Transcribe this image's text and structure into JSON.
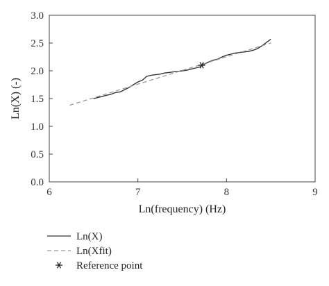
{
  "chart_data": {
    "type": "line",
    "xlabel": "Ln(frequency) (Hz)",
    "ylabel": "Ln(X) (-)",
    "xlim": [
      6,
      9
    ],
    "ylim": [
      0,
      3
    ],
    "x_ticks": [
      "6",
      "7",
      "8",
      "9"
    ],
    "y_ticks": [
      "0.0",
      "0.5",
      "1.0",
      "1.5",
      "2.0",
      "2.5",
      "3.0"
    ],
    "grid": false,
    "legend_position": "below",
    "series": [
      {
        "name": "Ln(X)",
        "style": "solid",
        "color": "#333333",
        "points": [
          [
            6.5,
            1.5
          ],
          [
            6.55,
            1.52
          ],
          [
            6.6,
            1.54
          ],
          [
            6.65,
            1.56
          ],
          [
            6.7,
            1.58
          ],
          [
            6.75,
            1.61
          ],
          [
            6.8,
            1.62
          ],
          [
            6.85,
            1.66
          ],
          [
            6.9,
            1.7
          ],
          [
            6.95,
            1.75
          ],
          [
            7.0,
            1.8
          ],
          [
            7.05,
            1.83
          ],
          [
            7.1,
            1.9
          ],
          [
            7.15,
            1.92
          ],
          [
            7.2,
            1.93
          ],
          [
            7.25,
            1.94
          ],
          [
            7.3,
            1.96
          ],
          [
            7.35,
            1.97
          ],
          [
            7.4,
            1.98
          ],
          [
            7.45,
            1.99
          ],
          [
            7.5,
            2.0
          ],
          [
            7.55,
            2.01
          ],
          [
            7.6,
            2.03
          ],
          [
            7.65,
            2.05
          ],
          [
            7.7,
            2.07
          ],
          [
            7.75,
            2.12
          ],
          [
            7.8,
            2.16
          ],
          [
            7.85,
            2.19
          ],
          [
            7.9,
            2.21
          ],
          [
            7.95,
            2.25
          ],
          [
            8.0,
            2.28
          ],
          [
            8.05,
            2.3
          ],
          [
            8.1,
            2.32
          ],
          [
            8.15,
            2.33
          ],
          [
            8.2,
            2.34
          ],
          [
            8.25,
            2.35
          ],
          [
            8.3,
            2.37
          ],
          [
            8.35,
            2.4
          ],
          [
            8.4,
            2.45
          ],
          [
            8.45,
            2.51
          ],
          [
            8.5,
            2.57
          ]
        ]
      },
      {
        "name": "Ln(Xfit)",
        "style": "dashed",
        "color": "#999999",
        "points": [
          [
            6.23,
            1.38
          ],
          [
            8.5,
            2.5
          ]
        ]
      },
      {
        "name": "Reference point",
        "style": "marker",
        "marker": "asterisk",
        "color": "#222222",
        "points": [
          [
            7.72,
            2.1
          ]
        ]
      }
    ]
  }
}
